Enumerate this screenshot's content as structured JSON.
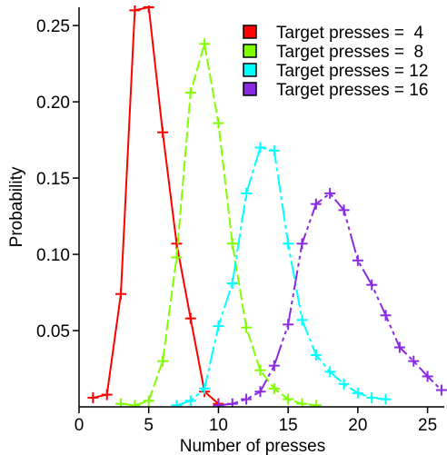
{
  "chart_data": {
    "type": "line",
    "xlabel": "Number of presses",
    "ylabel": "Probability",
    "xlim": [
      0,
      26.2
    ],
    "ylim": [
      0,
      0.262
    ],
    "x_ticks": [
      0,
      5,
      10,
      15,
      20,
      25
    ],
    "x_tick_labels": [
      "0",
      "5",
      "10",
      "15",
      "20",
      "25"
    ],
    "y_ticks": [
      0.05,
      0.1,
      0.15,
      0.2,
      0.25
    ],
    "y_tick_labels": [
      "0.05",
      "0.10",
      "0.15",
      "0.20",
      "0.25"
    ],
    "legend_position": "top-right",
    "series": [
      {
        "name": "Target presses =  4",
        "color": "#ff0000",
        "dash": "none",
        "x": [
          1,
          2,
          3,
          4,
          5,
          6,
          7,
          8,
          9,
          10
        ],
        "y": [
          0.006,
          0.008,
          0.074,
          0.26,
          0.262,
          0.18,
          0.107,
          0.058,
          0.01,
          0.002
        ]
      },
      {
        "name": "Target presses =  8",
        "color": "#7fff00",
        "dash": "12,4",
        "x": [
          3,
          4,
          5,
          6,
          7,
          8,
          9,
          10,
          11,
          12,
          13,
          14,
          15,
          16,
          17
        ],
        "y": [
          0.002,
          0.001,
          0.004,
          0.03,
          0.098,
          0.206,
          0.238,
          0.186,
          0.107,
          0.052,
          0.024,
          0.012,
          0.005,
          0.002,
          0.001
        ]
      },
      {
        "name": "Target presses = 12",
        "color": "#00ffff",
        "dash": "20,4,4,4",
        "x": [
          7,
          8,
          9,
          10,
          11,
          12,
          13,
          14,
          15,
          16,
          17,
          18,
          19,
          20,
          21,
          22
        ],
        "y": [
          0.001,
          0.004,
          0.012,
          0.053,
          0.081,
          0.14,
          0.17,
          0.168,
          0.107,
          0.057,
          0.034,
          0.023,
          0.015,
          0.009,
          0.006,
          0.005
        ]
      },
      {
        "name": "Target presses = 16",
        "color": "#8a2be2",
        "dash": "22,4,4,4,4,4",
        "x": [
          10,
          11,
          12,
          13,
          14,
          15,
          16,
          17,
          18,
          19,
          20,
          21,
          22,
          23,
          24,
          25,
          26
        ],
        "y": [
          0.001,
          0.002,
          0.005,
          0.01,
          0.027,
          0.054,
          0.107,
          0.133,
          0.14,
          0.129,
          0.096,
          0.08,
          0.06,
          0.039,
          0.03,
          0.02,
          0.011
        ]
      }
    ]
  }
}
